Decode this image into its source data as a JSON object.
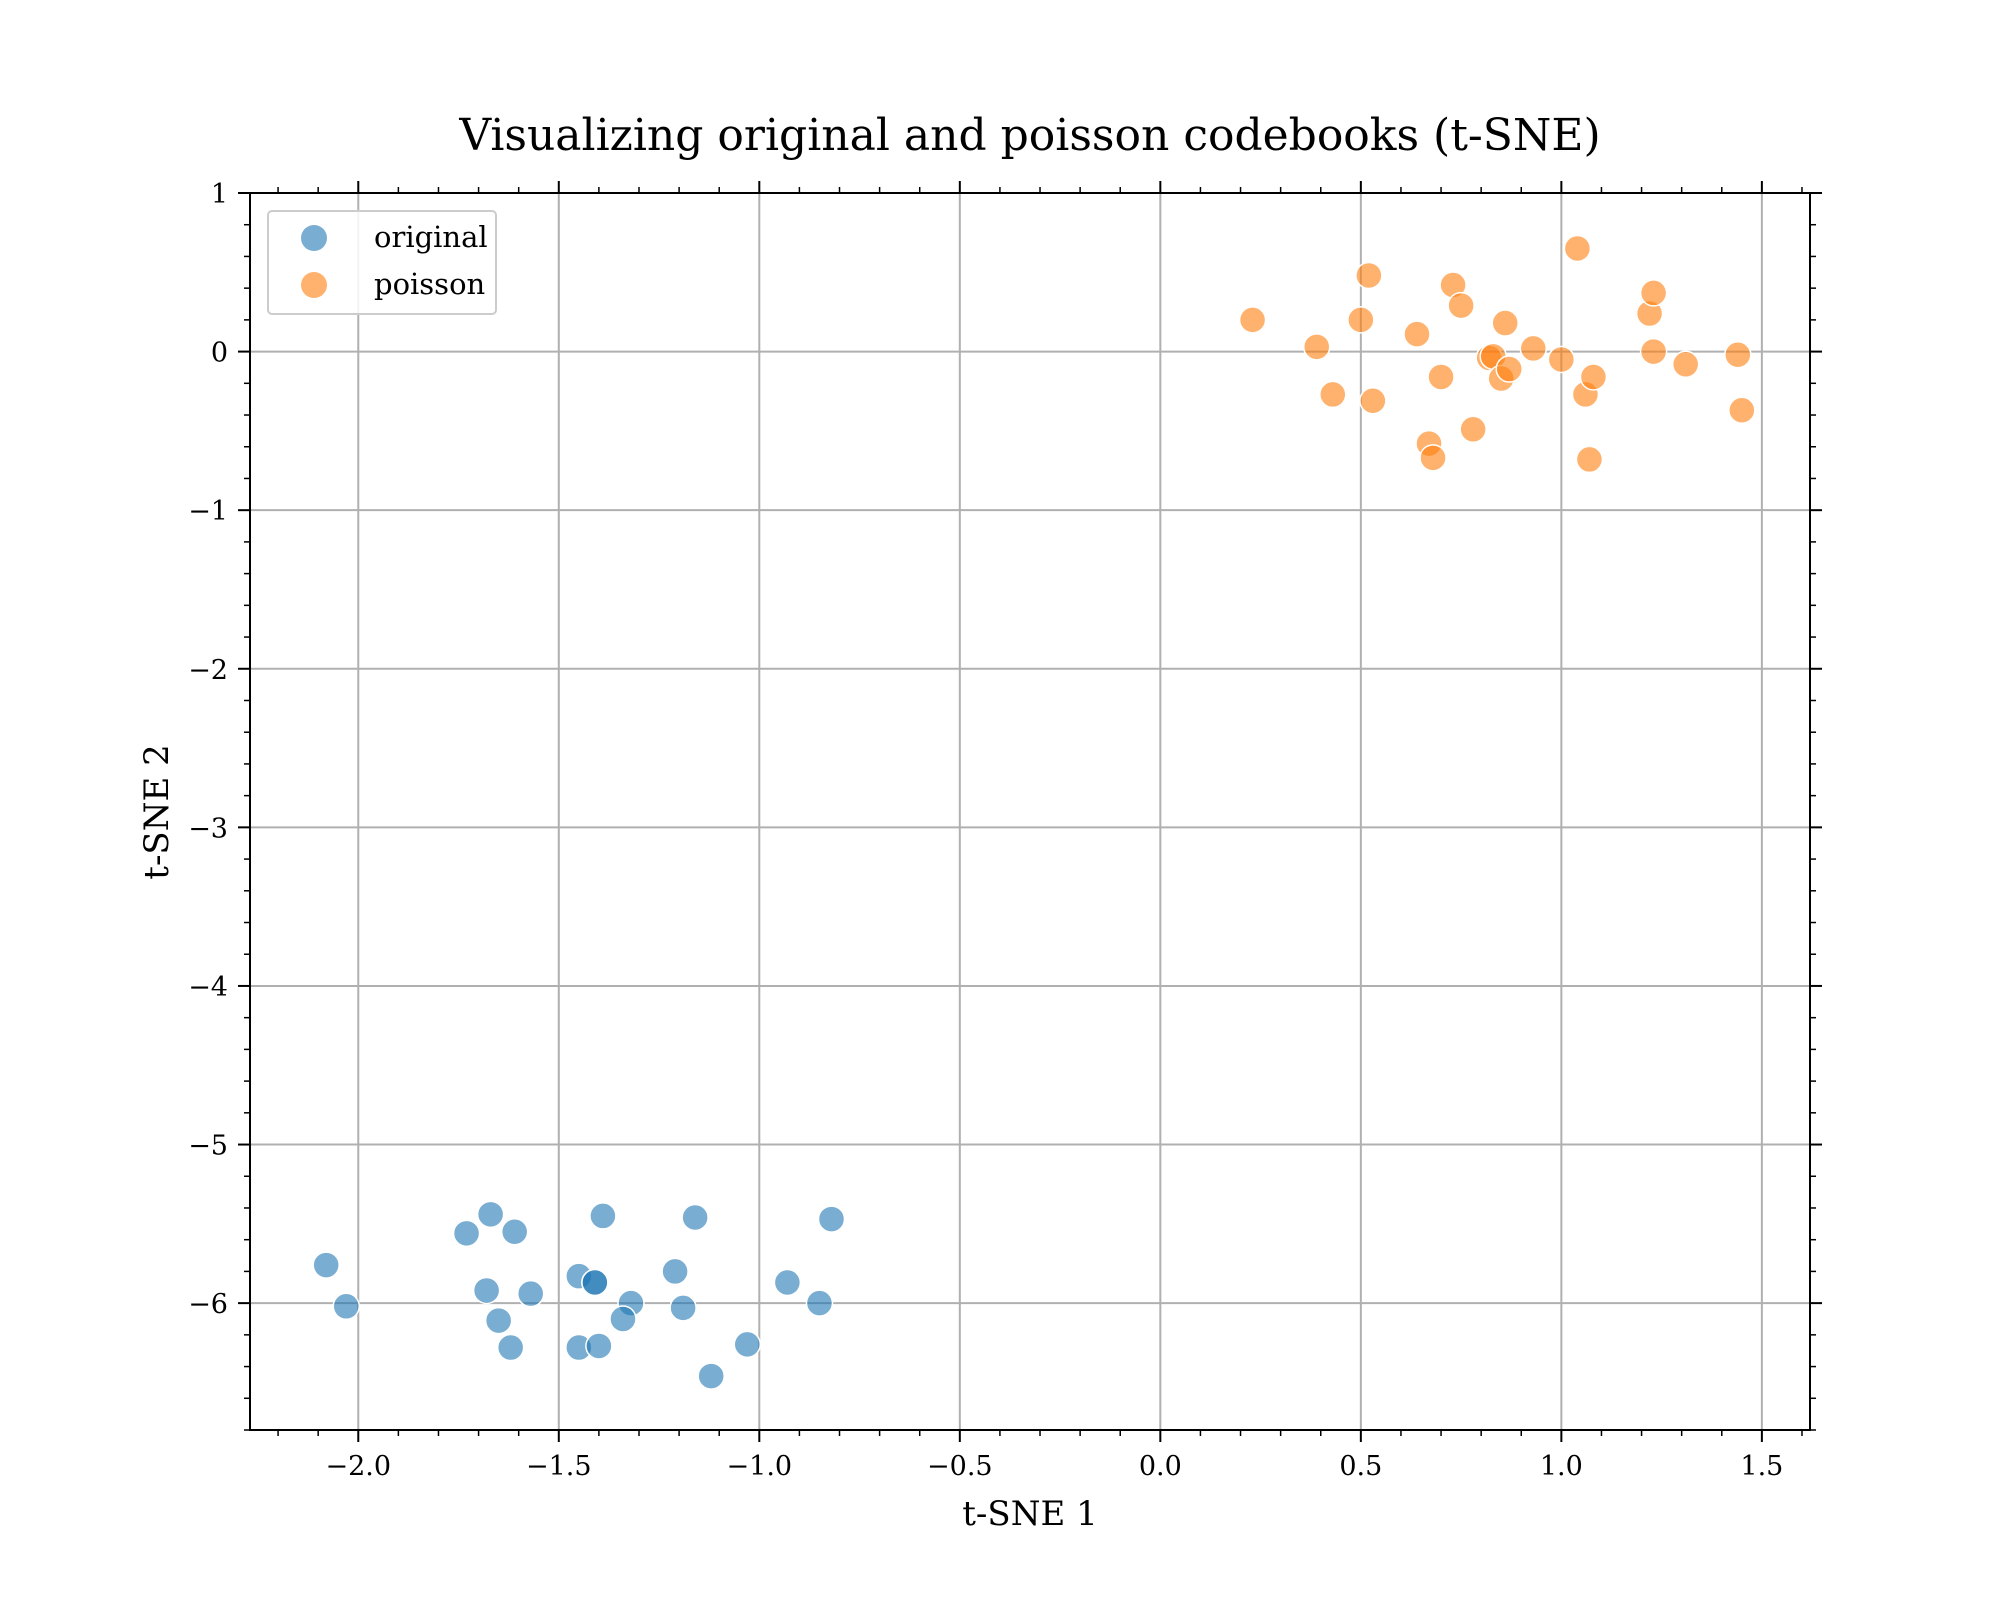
{
  "chart_data": {
    "type": "scatter",
    "title": "Visualizing original and poisson codebooks (t-SNE)",
    "xlabel": "t-SNE 1",
    "ylabel": "t-SNE 2",
    "xlim": [
      -2.27,
      1.62
    ],
    "ylim": [
      -6.8,
      1.0
    ],
    "grid": true,
    "legend_position": "top-left",
    "x_ticks": [
      -2.0,
      -1.5,
      -1.0,
      -0.5,
      0.0,
      0.5,
      1.0,
      1.5
    ],
    "x_tick_labels": [
      "−2.0",
      "−1.5",
      "−1.0",
      "−0.5",
      "0.0",
      "0.5",
      "1.0",
      "1.5"
    ],
    "y_ticks": [
      1,
      0,
      -1,
      -2,
      -3,
      -4,
      -5,
      -6
    ],
    "y_tick_labels": [
      "1",
      "0",
      "−1",
      "−2",
      "−3",
      "−4",
      "−5",
      "−6"
    ],
    "series": [
      {
        "name": "original",
        "color": "#1f77b4",
        "points": [
          [
            -2.08,
            -5.76
          ],
          [
            -2.03,
            -6.02
          ],
          [
            -1.73,
            -5.56
          ],
          [
            -1.67,
            -5.44
          ],
          [
            -1.61,
            -5.55
          ],
          [
            -1.68,
            -5.92
          ],
          [
            -1.65,
            -6.11
          ],
          [
            -1.62,
            -6.28
          ],
          [
            -1.57,
            -5.94
          ],
          [
            -1.45,
            -5.83
          ],
          [
            -1.41,
            -5.87
          ],
          [
            -1.41,
            -5.87
          ],
          [
            -1.39,
            -5.45
          ],
          [
            -1.32,
            -6.0
          ],
          [
            -1.34,
            -6.1
          ],
          [
            -1.45,
            -6.28
          ],
          [
            -1.4,
            -6.27
          ],
          [
            -1.21,
            -5.8
          ],
          [
            -1.19,
            -6.03
          ],
          [
            -1.16,
            -5.46
          ],
          [
            -1.12,
            -6.46
          ],
          [
            -1.03,
            -6.26
          ],
          [
            -0.93,
            -5.87
          ],
          [
            -0.85,
            -6.0
          ],
          [
            -0.82,
            -5.47
          ]
        ]
      },
      {
        "name": "poisson",
        "color": "#ff7f0e",
        "points": [
          [
            0.23,
            0.2
          ],
          [
            0.39,
            0.03
          ],
          [
            0.43,
            -0.27
          ],
          [
            0.5,
            0.2
          ],
          [
            0.52,
            0.48
          ],
          [
            0.53,
            -0.31
          ],
          [
            0.64,
            0.11
          ],
          [
            0.67,
            -0.58
          ],
          [
            0.68,
            -0.67
          ],
          [
            0.7,
            -0.16
          ],
          [
            0.73,
            0.42
          ],
          [
            0.75,
            0.29
          ],
          [
            0.78,
            -0.49
          ],
          [
            0.82,
            -0.04
          ],
          [
            0.83,
            -0.03
          ],
          [
            0.85,
            -0.17
          ],
          [
            0.86,
            0.18
          ],
          [
            0.87,
            -0.11
          ],
          [
            0.93,
            0.02
          ],
          [
            1.0,
            -0.05
          ],
          [
            1.04,
            0.65
          ],
          [
            1.06,
            -0.27
          ],
          [
            1.07,
            -0.68
          ],
          [
            1.08,
            -0.16
          ],
          [
            1.22,
            0.24
          ],
          [
            1.23,
            0.37
          ],
          [
            1.23,
            0.0
          ],
          [
            1.31,
            -0.08
          ],
          [
            1.44,
            -0.02
          ],
          [
            1.45,
            -0.37
          ]
        ]
      }
    ]
  }
}
